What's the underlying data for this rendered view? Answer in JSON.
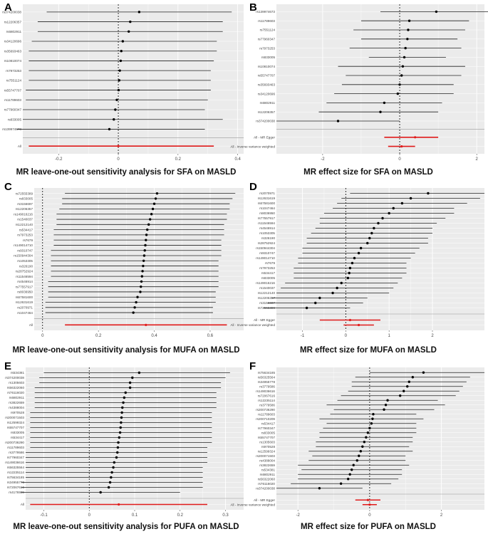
{
  "figure": {
    "panels": [
      {
        "letter": "A",
        "caption": "MR leave-one-out sensitivity analysis for SFA on MASLD"
      },
      {
        "letter": "B",
        "caption": "MR effect size for SFA on MASLD"
      },
      {
        "letter": "C",
        "caption": "MR leave-one-out sensitivity analysis for MUFA on MASLD"
      },
      {
        "letter": "D",
        "caption": "MR effect size for MUFA on MASLD"
      },
      {
        "letter": "E",
        "caption": "MR leave-one-out sensitivity analysis for PUFA on MASLD"
      },
      {
        "letter": "F",
        "caption": "MR effect size for PUFA on MASLD"
      }
    ]
  },
  "colors": {
    "background": "#ebebeb",
    "grid": "#ffffff",
    "point": "#000000",
    "summary": "#e01b1b",
    "ref": "#000000"
  },
  "chart_data": [
    {
      "type": "forest",
      "panel": "A",
      "xlim": [
        -0.32,
        0.42
      ],
      "xticks": [
        -0.2,
        0,
        0.2,
        0.4
      ],
      "ref_line": 0,
      "rows": [
        {
          "label": "rs374200038",
          "est": 0.07,
          "lo": -0.24,
          "hi": 0.38
        },
        {
          "label": "rs12206357",
          "est": 0.04,
          "lo": -0.27,
          "hi": 0.35
        },
        {
          "label": "rs6802911",
          "est": 0.035,
          "lo": -0.27,
          "hi": 0.35
        },
        {
          "label": "rs34120696",
          "est": 0.015,
          "lo": -0.29,
          "hi": 0.33
        },
        {
          "label": "rs35693463",
          "est": 0.01,
          "lo": -0.3,
          "hi": 0.33
        },
        {
          "label": "rs10810074",
          "est": 0.008,
          "lo": -0.3,
          "hi": 0.32
        },
        {
          "label": "rs7973253",
          "est": 0.005,
          "lo": -0.3,
          "hi": 0.31
        },
        {
          "label": "rs7551124",
          "est": 0.003,
          "lo": -0.3,
          "hi": 0.31
        },
        {
          "label": "rs55747707",
          "est": 0.001,
          "lo": -0.31,
          "hi": 0.31
        },
        {
          "label": "rs11789603",
          "est": -0.005,
          "lo": -0.31,
          "hi": 0.3
        },
        {
          "label": "rs77960347",
          "est": -0.01,
          "lo": -0.32,
          "hi": 0.29
        },
        {
          "label": "rs833005",
          "est": -0.015,
          "lo": -0.32,
          "hi": 0.35
        },
        {
          "label": "rs139974673",
          "est": -0.03,
          "lo": -0.34,
          "hi": 0.29
        }
      ],
      "summary": [
        {
          "label": "All",
          "est": 0.0,
          "lo": -0.3,
          "hi": 0.32
        }
      ]
    },
    {
      "type": "forest",
      "panel": "B",
      "xlim": [
        -3.2,
        2.2
      ],
      "xticks": [
        -2,
        0,
        2
      ],
      "ref_line": 0,
      "rows": [
        {
          "label": "rs139974673",
          "est": 0.95,
          "lo": -0.5,
          "hi": 2.3
        },
        {
          "label": "rs11789603",
          "est": 0.25,
          "lo": -1.0,
          "hi": 1.8
        },
        {
          "label": "rs7551124",
          "est": 0.22,
          "lo": -1.2,
          "hi": 1.7
        },
        {
          "label": "rs77960347",
          "est": 0.2,
          "lo": -1.0,
          "hi": 1.5
        },
        {
          "label": "rs7973253",
          "est": 0.15,
          "lo": -1.3,
          "hi": 1.6
        },
        {
          "label": "rs833005",
          "est": 0.12,
          "lo": -0.8,
          "hi": 1.2
        },
        {
          "label": "rs10810074",
          "est": 0.08,
          "lo": -1.6,
          "hi": 1.7
        },
        {
          "label": "rs55747707",
          "est": 0.05,
          "lo": -1.4,
          "hi": 1.6
        },
        {
          "label": "rs35693463",
          "est": 0.0,
          "lo": -1.5,
          "hi": 1.4
        },
        {
          "label": "rs34120696",
          "est": -0.05,
          "lo": -1.7,
          "hi": 1.4
        },
        {
          "label": "rs6802911",
          "est": -0.4,
          "lo": -1.9,
          "hi": 1.1
        },
        {
          "label": "rs12206357",
          "est": -0.5,
          "lo": -2.1,
          "hi": 1.0
        },
        {
          "label": "rs374200038",
          "est": -1.6,
          "lo": -3.2,
          "hi": 0.0
        }
      ],
      "summary": [
        {
          "label": "All - MR Egger",
          "est": 0.4,
          "lo": -0.4,
          "hi": 1.0
        },
        {
          "label": "All - Inverse variance weighted",
          "est": 0.05,
          "lo": -0.3,
          "hi": 0.4
        }
      ]
    },
    {
      "type": "forest",
      "panel": "C",
      "xlim": [
        -0.03,
        0.72
      ],
      "xticks": [
        0.0,
        0.2,
        0.4,
        0.6
      ],
      "ref_line": 0,
      "rows": [
        {
          "label": "rs72555389",
          "est": 0.41,
          "lo": 0.08,
          "hi": 0.69
        },
        {
          "label": "rs833005",
          "est": 0.405,
          "lo": 0.07,
          "hi": 0.68
        },
        {
          "label": "rs3156697",
          "est": 0.4,
          "lo": 0.07,
          "hi": 0.67
        },
        {
          "label": "rs12206357",
          "est": 0.395,
          "lo": 0.06,
          "hi": 0.67
        },
        {
          "label": "rs149016216",
          "est": 0.39,
          "lo": 0.05,
          "hi": 0.66
        },
        {
          "label": "rs1540037",
          "est": 0.385,
          "lo": 0.05,
          "hi": 0.66
        },
        {
          "label": "rs12212140",
          "est": 0.38,
          "lo": 0.05,
          "hi": 0.65
        },
        {
          "label": "rs534417",
          "est": 0.375,
          "lo": 0.04,
          "hi": 0.65
        },
        {
          "label": "rs7973253",
          "est": 0.372,
          "lo": 0.04,
          "hi": 0.65
        },
        {
          "label": "rs7679",
          "est": 0.37,
          "lo": 0.04,
          "hi": 0.64
        },
        {
          "label": "rs149014710",
          "est": 0.368,
          "lo": 0.04,
          "hi": 0.64
        },
        {
          "label": "rs9310747",
          "est": 0.366,
          "lo": 0.03,
          "hi": 0.64
        },
        {
          "label": "rs150944304",
          "est": 0.364,
          "lo": 0.03,
          "hi": 0.64
        },
        {
          "label": "rs1053305",
          "est": 0.362,
          "lo": 0.03,
          "hi": 0.63
        },
        {
          "label": "rs326190",
          "est": 0.36,
          "lo": 0.03,
          "hi": 0.63
        },
        {
          "label": "rs28752924",
          "est": 0.358,
          "lo": 0.03,
          "hi": 0.63
        },
        {
          "label": "rs11546594",
          "est": 0.356,
          "lo": 0.03,
          "hi": 0.63
        },
        {
          "label": "rs4546914",
          "est": 0.354,
          "lo": 0.02,
          "hi": 0.63
        },
        {
          "label": "rs77557917",
          "est": 0.352,
          "lo": 0.02,
          "hi": 0.63
        },
        {
          "label": "rs8036950",
          "est": 0.35,
          "lo": 0.02,
          "hi": 0.62
        },
        {
          "label": "rs67581600",
          "est": 0.34,
          "lo": 0.02,
          "hi": 0.62
        },
        {
          "label": "rs12631619",
          "est": 0.335,
          "lo": 0.01,
          "hi": 0.62
        },
        {
          "label": "rs2070971",
          "est": 0.33,
          "lo": 0.01,
          "hi": 0.61
        },
        {
          "label": "rs1047464",
          "est": 0.325,
          "lo": 0.01,
          "hi": 0.61
        }
      ],
      "summary": [
        {
          "label": "All",
          "est": 0.37,
          "lo": 0.08,
          "hi": 0.66
        }
      ]
    },
    {
      "type": "forest",
      "panel": "D",
      "xlim": [
        -1.6,
        3.2
      ],
      "xticks": [
        -1,
        0,
        1,
        2
      ],
      "ref_line": 0,
      "rows": [
        {
          "label": "rs2070971",
          "est": 1.9,
          "lo": 0.1,
          "hi": 3.2
        },
        {
          "label": "rs12631619",
          "est": 1.5,
          "lo": -0.1,
          "hi": 3.1
        },
        {
          "label": "rs67581600",
          "est": 1.3,
          "lo": -0.2,
          "hi": 2.8
        },
        {
          "label": "rs1047464",
          "est": 1.1,
          "lo": -0.3,
          "hi": 2.5
        },
        {
          "label": "rs8036950",
          "est": 1.0,
          "lo": -0.5,
          "hi": 2.5
        },
        {
          "label": "rs77557917",
          "est": 0.85,
          "lo": -0.6,
          "hi": 2.3
        },
        {
          "label": "rs11546594",
          "est": 0.75,
          "lo": -0.6,
          "hi": 2.1
        },
        {
          "label": "rs4546914",
          "est": 0.65,
          "lo": -0.7,
          "hi": 2.0
        },
        {
          "label": "rs1053305",
          "est": 0.6,
          "lo": -0.8,
          "hi": 2.0
        },
        {
          "label": "rs326190",
          "est": 0.55,
          "lo": -0.9,
          "hi": 1.9
        },
        {
          "label": "rs28752924",
          "est": 0.5,
          "lo": -0.9,
          "hi": 1.9
        },
        {
          "label": "rs150944304",
          "est": 0.35,
          "lo": -1.0,
          "hi": 1.7
        },
        {
          "label": "rs9310747",
          "est": 0.3,
          "lo": -1.0,
          "hi": 1.6
        },
        {
          "label": "rs149014710",
          "est": 0.2,
          "lo": -1.1,
          "hi": 1.5
        },
        {
          "label": "rs7679",
          "est": 0.15,
          "lo": -1.1,
          "hi": 1.4
        },
        {
          "label": "rs7973253",
          "est": 0.1,
          "lo": -1.2,
          "hi": 1.4
        },
        {
          "label": "rs534417",
          "est": 0.08,
          "lo": -1.2,
          "hi": 1.4
        },
        {
          "label": "rs833005",
          "est": 0.05,
          "lo": -1.2,
          "hi": 1.3
        },
        {
          "label": "rs149016216",
          "est": -0.1,
          "lo": -1.4,
          "hi": 1.2
        },
        {
          "label": "rs1540037",
          "est": -0.2,
          "lo": -1.5,
          "hi": 1.1
        },
        {
          "label": "rs12212140",
          "est": -0.3,
          "lo": -1.6,
          "hi": 1.0
        },
        {
          "label": "rs12206357",
          "est": -0.6,
          "lo": -1.7,
          "hi": 0.5
        },
        {
          "label": "rs3156697",
          "est": -0.7,
          "lo": -1.8,
          "hi": 0.4
        },
        {
          "label": "rs72555389",
          "est": -0.9,
          "lo": -1.9,
          "hi": 0.1
        }
      ],
      "summary": [
        {
          "label": "All - MR Egger",
          "est": 0.1,
          "lo": -0.6,
          "hi": 0.8
        },
        {
          "label": "All - Inverse variance weighted",
          "est": 0.3,
          "lo": -0.05,
          "hi": 0.65
        }
      ]
    },
    {
      "type": "forest",
      "panel": "E",
      "xlim": [
        -0.14,
        0.34
      ],
      "xticks": [
        -0.1,
        0.0,
        0.1,
        0.2,
        0.3
      ],
      "ref_line": 0,
      "rows": [
        {
          "label": "rs534381",
          "est": 0.11,
          "lo": -0.1,
          "hi": 0.31
        },
        {
          "label": "rs374200038",
          "est": 0.095,
          "lo": -0.11,
          "hi": 0.3
        },
        {
          "label": "rs1305603",
          "est": 0.09,
          "lo": -0.11,
          "hi": 0.29
        },
        {
          "label": "rs56322060",
          "est": 0.09,
          "lo": -0.12,
          "hi": 0.29
        },
        {
          "label": "rs76116020",
          "est": 0.08,
          "lo": -0.12,
          "hi": 0.28
        },
        {
          "label": "rs6802911",
          "est": 0.077,
          "lo": -0.12,
          "hi": 0.28
        },
        {
          "label": "rs3822659",
          "est": 0.075,
          "lo": -0.12,
          "hi": 0.28
        },
        {
          "label": "rs4388004",
          "est": 0.073,
          "lo": -0.12,
          "hi": 0.28
        },
        {
          "label": "rs970528",
          "est": 0.072,
          "lo": -0.13,
          "hi": 0.27
        },
        {
          "label": "rs200071503",
          "est": 0.071,
          "lo": -0.13,
          "hi": 0.27
        },
        {
          "label": "rs12599324",
          "est": 0.07,
          "lo": -0.13,
          "hi": 0.27
        },
        {
          "label": "rs55747707",
          "est": 0.069,
          "lo": -0.13,
          "hi": 0.27
        },
        {
          "label": "rs833005",
          "est": 0.068,
          "lo": -0.13,
          "hi": 0.27
        },
        {
          "label": "rs534417",
          "est": 0.066,
          "lo": -0.13,
          "hi": 0.27
        },
        {
          "label": "rs200736290",
          "est": 0.064,
          "lo": -0.13,
          "hi": 0.27
        },
        {
          "label": "rs11789603",
          "est": 0.063,
          "lo": -0.13,
          "hi": 0.26
        },
        {
          "label": "rs3779586",
          "est": 0.062,
          "lo": -0.14,
          "hi": 0.26
        },
        {
          "label": "rs77960347",
          "est": 0.06,
          "lo": -0.14,
          "hi": 0.26
        },
        {
          "label": "rs149036616",
          "est": 0.055,
          "lo": -0.14,
          "hi": 0.26
        },
        {
          "label": "rs56325564",
          "est": 0.053,
          "lo": -0.14,
          "hi": 0.25
        },
        {
          "label": "rs12235114",
          "est": 0.05,
          "lo": -0.14,
          "hi": 0.25
        },
        {
          "label": "rs75634185",
          "est": 0.048,
          "lo": -0.14,
          "hi": 0.25
        },
        {
          "label": "rs34955778",
          "est": 0.046,
          "lo": -0.15,
          "hi": 0.25
        },
        {
          "label": "rs72067616",
          "est": 0.043,
          "lo": -0.15,
          "hi": 0.25
        },
        {
          "label": "rs4176989",
          "est": 0.025,
          "lo": -0.15,
          "hi": 0.2
        }
      ],
      "summary": [
        {
          "label": "All",
          "est": 0.065,
          "lo": -0.13,
          "hi": 0.26
        }
      ]
    },
    {
      "type": "forest",
      "panel": "F",
      "xlim": [
        -2.6,
        3.2
      ],
      "xticks": [
        -2,
        0,
        2
      ],
      "ref_line": 0,
      "rows": [
        {
          "label": "rs75634185",
          "est": 1.5,
          "lo": 0.0,
          "hi": 3.2
        },
        {
          "label": "rs56325564",
          "est": 1.2,
          "lo": -0.4,
          "hi": 2.8
        },
        {
          "label": "rs34955778",
          "est": 1.1,
          "lo": -0.5,
          "hi": 2.7
        },
        {
          "label": "rs3779586",
          "est": 1.05,
          "lo": -0.5,
          "hi": 2.6
        },
        {
          "label": "rs149036616",
          "est": 0.95,
          "lo": -0.6,
          "hi": 2.5
        },
        {
          "label": "rs72067616",
          "est": 0.85,
          "lo": -0.8,
          "hi": 2.4
        },
        {
          "label": "rs12235114",
          "est": 0.5,
          "lo": -0.9,
          "hi": 1.9
        },
        {
          "label": "rs3779586",
          "est": 0.45,
          "lo": -1.2,
          "hi": 2.1
        },
        {
          "label": "rs200736290",
          "est": 0.4,
          "lo": -1.0,
          "hi": 1.8
        },
        {
          "label": "rs11789603",
          "est": 0.1,
          "lo": -1.1,
          "hi": 1.3
        },
        {
          "label": "rs200710209",
          "est": 0.08,
          "lo": -1.4,
          "hi": 1.5
        },
        {
          "label": "rs534417",
          "est": 0.05,
          "lo": -1.2,
          "hi": 1.3
        },
        {
          "label": "rs77960347",
          "est": 0.0,
          "lo": -1.3,
          "hi": 1.3
        },
        {
          "label": "rs833005",
          "est": -0.05,
          "lo": -1.4,
          "hi": 1.3
        },
        {
          "label": "rs55747707",
          "est": -0.1,
          "lo": -1.4,
          "hi": 1.2
        },
        {
          "label": "rs1305603",
          "est": -0.15,
          "lo": -1.5,
          "hi": 1.2
        },
        {
          "label": "rs970528",
          "est": -0.2,
          "lo": -1.5,
          "hi": 1.1
        },
        {
          "label": "rs12599324",
          "est": -0.25,
          "lo": -1.7,
          "hi": 1.2
        },
        {
          "label": "rs200071503",
          "est": -0.3,
          "lo": -1.6,
          "hi": 1.0
        },
        {
          "label": "rs4388004",
          "est": -0.35,
          "lo": -1.7,
          "hi": 1.0
        },
        {
          "label": "rs3822659",
          "est": -0.45,
          "lo": -2.0,
          "hi": 1.1
        },
        {
          "label": "rs534381",
          "est": -0.5,
          "lo": -1.9,
          "hi": 0.9
        },
        {
          "label": "rs6802911",
          "est": -0.55,
          "lo": -2.0,
          "hi": 0.9
        },
        {
          "label": "rs56322060",
          "est": -0.6,
          "lo": -2.0,
          "hi": 0.8
        },
        {
          "label": "rs76116020",
          "est": -0.8,
          "lo": -2.2,
          "hi": 0.6
        },
        {
          "label": "rs374200038",
          "est": -1.4,
          "lo": -2.6,
          "hi": -0.2
        }
      ],
      "summary": [
        {
          "label": "All - MR Egger",
          "est": -0.05,
          "lo": -0.4,
          "hi": 0.3
        },
        {
          "label": "All - Inverse variance weighted",
          "est": 0.0,
          "lo": -0.2,
          "hi": 0.2
        }
      ]
    }
  ]
}
